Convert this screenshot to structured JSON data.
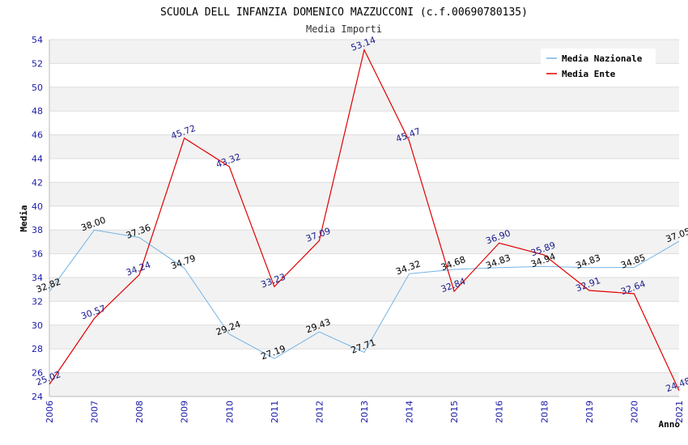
{
  "chart_data": {
    "type": "line",
    "title": "SCUOLA DELL INFANZIA DOMENICO MAZZUCCONI (c.f.00690780135)",
    "subtitle": "Media Importi",
    "xlabel": "Anno",
    "ylabel": "Media",
    "ylim": [
      24,
      54
    ],
    "ytick_step": 2,
    "grid": true,
    "legend_position": "top-right",
    "categories": [
      "2006",
      "2007",
      "2008",
      "2009",
      "2010",
      "2011",
      "2012",
      "2013",
      "2014",
      "2015",
      "2016",
      "2018",
      "2019",
      "2020",
      "2021"
    ],
    "series": [
      {
        "name": "Media Nazionale",
        "color": "#74b4e4",
        "label_color": "#000000",
        "values": [
          32.82,
          38.0,
          37.36,
          34.79,
          29.24,
          27.19,
          29.43,
          27.71,
          34.32,
          34.68,
          34.83,
          34.94,
          34.83,
          34.85,
          37.05
        ]
      },
      {
        "name": "Media Ente",
        "color": "#e00000",
        "label_color": "#1a1a8c",
        "values": [
          25.02,
          30.57,
          34.24,
          45.72,
          43.32,
          33.23,
          37.09,
          53.14,
          45.47,
          32.84,
          36.9,
          35.89,
          32.91,
          32.64,
          24.48
        ]
      }
    ]
  },
  "colors": {
    "axis_tick": "#1a1aa8",
    "band": "#f2f2f2",
    "grid": "#dddddd"
  }
}
